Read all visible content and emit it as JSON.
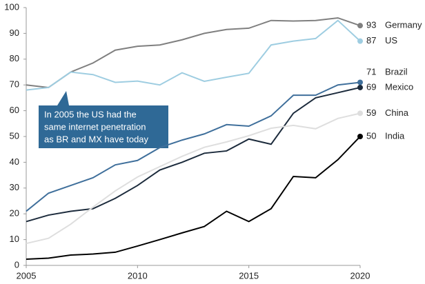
{
  "chart_data": {
    "type": "line",
    "x": [
      2005,
      2006,
      2007,
      2008,
      2009,
      2010,
      2011,
      2012,
      2013,
      2014,
      2015,
      2016,
      2017,
      2018,
      2019,
      2020
    ],
    "series": [
      {
        "name": "Germany",
        "color": "#7f7f7f",
        "values": [
          70,
          69,
          75,
          78.5,
          83.5,
          85,
          85.5,
          87.5,
          90,
          91.5,
          92,
          95,
          94.8,
          95,
          96,
          93
        ]
      },
      {
        "name": "US",
        "color": "#9ecde1",
        "values": [
          68,
          69,
          75,
          74,
          71,
          71.5,
          70,
          74.7,
          71.4,
          73,
          74.5,
          85.5,
          87,
          88,
          95,
          87
        ]
      },
      {
        "name": "Brazil",
        "color": "#3f6f9b",
        "values": [
          21,
          28,
          31,
          34,
          39,
          40.7,
          45.7,
          48.6,
          51,
          54.6,
          54,
          58,
          66,
          66,
          70,
          71
        ]
      },
      {
        "name": "Mexico",
        "color": "#1c2b3c",
        "values": [
          17,
          19.5,
          21,
          22,
          26,
          31,
          37,
          40,
          43.5,
          44.4,
          49,
          47,
          59,
          65,
          67,
          69
        ]
      },
      {
        "name": "China",
        "color": "#dedede",
        "values": [
          8.5,
          10.5,
          16,
          22.6,
          28.9,
          34.3,
          38.3,
          42.3,
          45.8,
          47.9,
          50.3,
          53.2,
          54.3,
          53,
          57,
          59
        ]
      },
      {
        "name": "India",
        "color": "#000000",
        "values": [
          2.4,
          2.8,
          4,
          4.4,
          5.1,
          7.5,
          10,
          12.6,
          15.1,
          21,
          17,
          22,
          34.5,
          34,
          41,
          50
        ]
      }
    ],
    "xlim": [
      2005,
      2020
    ],
    "xticks": [
      2005,
      2010,
      2015,
      2020
    ],
    "ylim": [
      0,
      100
    ],
    "yticks": [
      0,
      10,
      20,
      30,
      40,
      50,
      60,
      70,
      80,
      90,
      100
    ],
    "annotation": {
      "lines": [
        "In 2005 the US had the",
        "same internet penetration",
        "as BR and MX have today"
      ]
    }
  }
}
